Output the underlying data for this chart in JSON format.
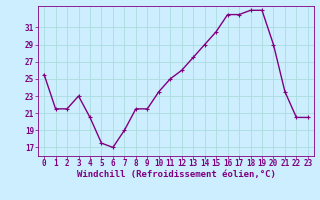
{
  "x": [
    0,
    1,
    2,
    3,
    4,
    5,
    6,
    7,
    8,
    9,
    10,
    11,
    12,
    13,
    14,
    15,
    16,
    17,
    18,
    19,
    20,
    21,
    22,
    23
  ],
  "y": [
    25.5,
    21.5,
    21.5,
    23.0,
    20.5,
    17.5,
    17.0,
    19.0,
    21.5,
    21.5,
    23.5,
    25.0,
    26.0,
    27.5,
    29.0,
    30.5,
    32.5,
    32.5,
    33.0,
    33.0,
    29.0,
    23.5,
    20.5,
    20.5
  ],
  "line_color": "#800080",
  "marker": "+",
  "marker_size": 3,
  "bg_color": "#cceeff",
  "grid_color": "#aadddd",
  "xlabel": "Windchill (Refroidissement éolien,°C)",
  "xlim": [
    -0.5,
    23.5
  ],
  "ylim": [
    16.0,
    33.5
  ],
  "yticks": [
    17,
    19,
    21,
    23,
    25,
    27,
    29,
    31
  ],
  "xticks": [
    0,
    1,
    2,
    3,
    4,
    5,
    6,
    7,
    8,
    9,
    10,
    11,
    12,
    13,
    14,
    15,
    16,
    17,
    18,
    19,
    20,
    21,
    22,
    23
  ],
  "tick_color": "#800080",
  "label_color": "#800080",
  "label_fontsize": 6.5,
  "tick_fontsize": 5.5,
  "line_width": 1.0,
  "marker_edge_width": 0.8
}
